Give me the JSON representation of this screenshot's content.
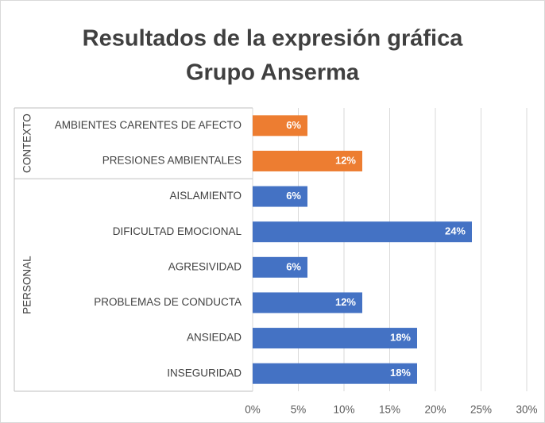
{
  "chart_data": {
    "type": "bar",
    "title": [
      "Resultados de la expresión gráfica",
      "Grupo Anserma"
    ],
    "groups": [
      {
        "name": "CONTEXTO",
        "color": "#ed7d31",
        "categories": [
          "AMBIENTES CARENTES DE AFECTO",
          "PRESIONES AMBIENTALES"
        ],
        "values": [
          6,
          12
        ],
        "value_labels": [
          "6%",
          "12%"
        ]
      },
      {
        "name": "PERSONAL",
        "color": "#4472c4",
        "categories": [
          "AISLAMIENTO",
          "DIFICULTAD EMOCIONAL",
          "AGRESIVIDAD",
          "PROBLEMAS DE CONDUCTA",
          "ANSIEDAD",
          "INSEGURIDAD"
        ],
        "values": [
          6,
          24,
          6,
          12,
          18,
          18
        ],
        "value_labels": [
          "6%",
          "24%",
          "6%",
          "12%",
          "18%",
          "18%"
        ]
      }
    ],
    "xlim": [
      0,
      30
    ],
    "xticks": [
      {
        "value": 0,
        "label": "0%"
      },
      {
        "value": 5,
        "label": "5%"
      },
      {
        "value": 10,
        "label": "10%"
      },
      {
        "value": 15,
        "label": "15%"
      },
      {
        "value": 20,
        "label": "20%"
      },
      {
        "value": 25,
        "label": "25%"
      },
      {
        "value": 30,
        "label": "30%"
      }
    ],
    "grid": true
  }
}
